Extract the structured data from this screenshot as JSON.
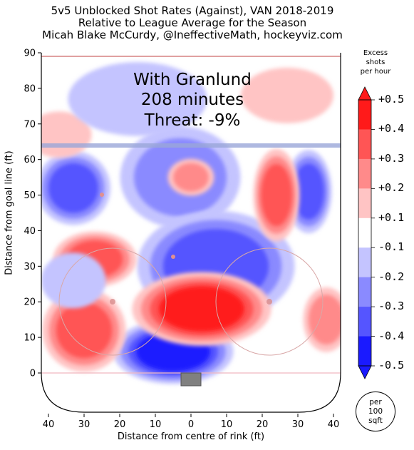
{
  "title_lines": [
    "5v5 Unblocked Shot Rates (Against), VAN 2018-2019",
    "Relative to League Average for the Season",
    "Micah Blake McCurdy, @IneffectiveMath, hockeyviz.com"
  ],
  "annotation": {
    "line1": "With Granlund",
    "line2": "208 minutes",
    "line3": "Threat: -9%"
  },
  "colorbar": {
    "title_lines": [
      "Excess",
      "shots",
      "per hour"
    ],
    "labels": [
      "+0.5",
      "+0.4",
      "+0.3",
      "+0.2",
      "+0.1",
      "-0.1",
      "-0.2",
      "-0.3",
      "-0.4",
      "-0.5"
    ],
    "colors": [
      "#ff1a1a",
      "#ff5555",
      "#ff8a8a",
      "#ffc4c4",
      "#ffffff",
      "#c4c4ff",
      "#8a8aff",
      "#5555ff",
      "#1a1aff"
    ],
    "per_lines": [
      "per",
      "100",
      "sqft"
    ]
  },
  "chart_data": {
    "type": "heatmap",
    "xlabel": "Distance from centre of rink (ft)",
    "ylabel": "Distance from goal line (ft)",
    "xlim": [
      -42,
      42
    ],
    "ylim": [
      -11,
      90
    ],
    "x_ticks": [
      40,
      30,
      20,
      10,
      0,
      10,
      20,
      30,
      40
    ],
    "y_ticks": [
      0,
      10,
      20,
      30,
      40,
      50,
      60,
      70,
      80,
      90
    ],
    "blue_line_y": 64,
    "top_line_y": 89,
    "zones": [
      {
        "x": -3,
        "y": 55,
        "rx": 13,
        "ry": 11,
        "value": -0.3
      },
      {
        "x": 7,
        "y": 30,
        "rx": 17,
        "ry": 12,
        "value": -0.4
      },
      {
        "x": -5,
        "y": 6,
        "rx": 13,
        "ry": 7,
        "value": -0.45
      },
      {
        "x": -33,
        "y": 52,
        "rx": 8,
        "ry": 8,
        "value": -0.35
      },
      {
        "x": 33,
        "y": 51,
        "rx": 5,
        "ry": 9,
        "value": -0.42
      },
      {
        "x": 3,
        "y": 18,
        "rx": 15,
        "ry": 8,
        "value": 0.45
      },
      {
        "x": -30,
        "y": 12,
        "rx": 9,
        "ry": 9,
        "value": 0.4
      },
      {
        "x": -27,
        "y": 32,
        "rx": 9,
        "ry": 6,
        "value": 0.35
      },
      {
        "x": 24,
        "y": 50,
        "rx": 5,
        "ry": 10,
        "value": 0.35
      },
      {
        "x": 0,
        "y": 55,
        "rx": 5,
        "ry": 4,
        "value": 0.3
      },
      {
        "x": 27,
        "y": 78,
        "rx": 10,
        "ry": 6,
        "value": 0.2
      },
      {
        "x": 38,
        "y": 15,
        "rx": 5,
        "ry": 7,
        "value": 0.3
      },
      {
        "x": -37,
        "y": 67,
        "rx": 7,
        "ry": 5,
        "value": 0.2
      },
      {
        "x": -15,
        "y": 77,
        "rx": 15,
        "ry": 8,
        "value": -0.15
      },
      {
        "x": -33,
        "y": 26,
        "rx": 7,
        "ry": 6,
        "value": -0.2
      }
    ]
  }
}
